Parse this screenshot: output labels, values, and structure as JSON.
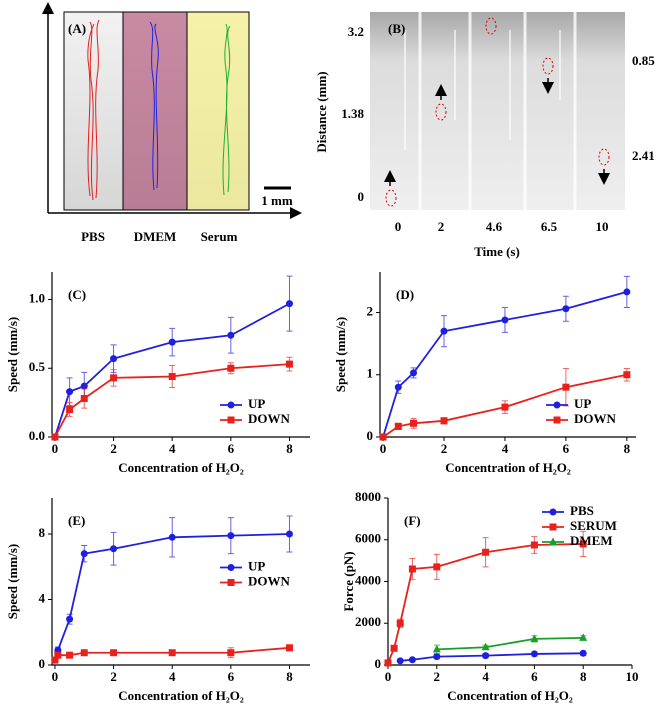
{
  "panel_a": {
    "label": "(A)",
    "lanes": [
      "PBS",
      "DMEM",
      "Serum"
    ],
    "scale_bar": "1 mm"
  },
  "panel_b": {
    "label": "(B)",
    "y_label": "Distance (mm)",
    "x_label": "Time (s)",
    "y_ticks": [
      "3.2",
      "1.38",
      "0"
    ],
    "x_ticks": [
      "0",
      "2",
      "4.6",
      "6.5",
      "10"
    ],
    "annotations": [
      "0.85",
      "2.41"
    ]
  },
  "chart_data": [
    {
      "type": "line",
      "label": "(C)",
      "x_label": "Concentration of H₂O₂",
      "y_label": "Speed (mm/s)",
      "xlim": [
        -0.1,
        8.7
      ],
      "ylim": [
        0,
        1.2
      ],
      "xticks": [
        0,
        2,
        4,
        6,
        8
      ],
      "yticks": [
        {
          "value": 0,
          "label": "0.0"
        },
        {
          "value": 0.5,
          "label": "0.5"
        },
        {
          "value": 1,
          "label": "1.0"
        }
      ],
      "legend": "lower right",
      "series": [
        {
          "name": "UP",
          "color": "#1f1fe0",
          "marker": "circle",
          "x": [
            0,
            0.5,
            1,
            2,
            4,
            6,
            8
          ],
          "values": [
            0,
            0.33,
            0.37,
            0.57,
            0.69,
            0.74,
            0.97
          ],
          "errors": [
            0,
            0.1,
            0.1,
            0.1,
            0.1,
            0.13,
            0.2
          ]
        },
        {
          "name": "DOWN",
          "color": "#e8211d",
          "marker": "square",
          "x": [
            0,
            0.5,
            1,
            2,
            4,
            6,
            8
          ],
          "values": [
            0,
            0.2,
            0.28,
            0.43,
            0.44,
            0.5,
            0.53
          ],
          "errors": [
            0,
            0.05,
            0.07,
            0.06,
            0.08,
            0.04,
            0.05
          ]
        }
      ]
    },
    {
      "type": "line",
      "label": "(D)",
      "x_label": "Concentration of H₂O₂",
      "y_label": "Speed (mm/s)",
      "xlim": [
        -0.1,
        8.3
      ],
      "ylim": [
        0,
        2.65
      ],
      "xticks": [
        0,
        2,
        4,
        6,
        8
      ],
      "yticks": [
        0,
        1,
        2
      ],
      "legend": "lower right",
      "series": [
        {
          "name": "UP",
          "color": "#1f1fe0",
          "marker": "circle",
          "x": [
            0,
            0.5,
            1,
            2,
            4,
            6,
            8
          ],
          "values": [
            0,
            0.8,
            1.03,
            1.7,
            1.88,
            2.06,
            2.33
          ],
          "errors": [
            0,
            0.1,
            0.08,
            0.25,
            0.2,
            0.2,
            0.25
          ]
        },
        {
          "name": "DOWN",
          "color": "#e8211d",
          "marker": "square",
          "x": [
            0,
            0.5,
            1,
            2,
            4,
            6,
            8
          ],
          "values": [
            0,
            0.17,
            0.22,
            0.26,
            0.48,
            0.8,
            1.0
          ],
          "errors": [
            0,
            0.05,
            0.08,
            0.05,
            0.1,
            0.3,
            0.1
          ]
        }
      ]
    },
    {
      "type": "line",
      "label": "(E)",
      "x_label": "Concentration of H₂O₂",
      "y_label": "Speed (mm/s)",
      "xlim": [
        -0.1,
        8.7
      ],
      "ylim": [
        0,
        10.2
      ],
      "xticks": [
        0,
        2,
        4,
        6,
        8
      ],
      "yticks": [
        0,
        4,
        8
      ],
      "legend": "center right",
      "series": [
        {
          "name": "UP",
          "color": "#1f1fe0",
          "marker": "circle",
          "x": [
            0,
            0.1,
            0.5,
            1,
            2,
            4,
            6,
            8
          ],
          "values": [
            0.3,
            0.9,
            2.8,
            6.8,
            7.1,
            7.8,
            7.9,
            8.0
          ],
          "errors": [
            0.1,
            0.2,
            0.3,
            0.5,
            1.0,
            1.2,
            1.1,
            1.1
          ]
        },
        {
          "name": "DOWN",
          "color": "#e8211d",
          "marker": "square",
          "x": [
            0,
            0.1,
            0.5,
            1,
            2,
            4,
            6,
            8
          ],
          "values": [
            0.3,
            0.6,
            0.6,
            0.75,
            0.75,
            0.75,
            0.75,
            1.05
          ],
          "errors": [
            0.05,
            0.1,
            0.1,
            0.1,
            0.05,
            0.1,
            0.3,
            0.15
          ]
        }
      ]
    },
    {
      "type": "line",
      "label": "(F)",
      "x_label": "Concentration of H₂O₂",
      "y_label": "Force (pN)",
      "xlim": [
        0,
        10
      ],
      "ylim": [
        0,
        8000
      ],
      "xticks": [
        0,
        2,
        4,
        6,
        8,
        10
      ],
      "yticks": [
        0,
        2000,
        4000,
        6000,
        8000
      ],
      "legend": "upper right",
      "series": [
        {
          "name": "PBS",
          "color": "#1f1fe0",
          "marker": "circle",
          "x": [
            0.5,
            1,
            2,
            4,
            6,
            8
          ],
          "values": [
            200,
            250,
            400,
            450,
            530,
            560
          ],
          "errors": [
            50,
            50,
            100,
            100,
            100,
            100
          ]
        },
        {
          "name": "SERUM",
          "color": "#e8211d",
          "marker": "square",
          "x": [
            0,
            0.25,
            0.5,
            1,
            2,
            4,
            6,
            8
          ],
          "values": [
            100,
            800,
            2000,
            4600,
            4700,
            5400,
            5750,
            5800
          ],
          "errors": [
            0,
            100,
            200,
            500,
            600,
            700,
            400,
            600
          ]
        },
        {
          "name": "DMEM",
          "color": "#1a9e2a",
          "marker": "triangle",
          "x": [
            2,
            4,
            6,
            8
          ],
          "values": [
            750,
            850,
            1250,
            1300
          ],
          "errors": [
            200,
            100,
            150,
            100
          ]
        }
      ]
    }
  ]
}
